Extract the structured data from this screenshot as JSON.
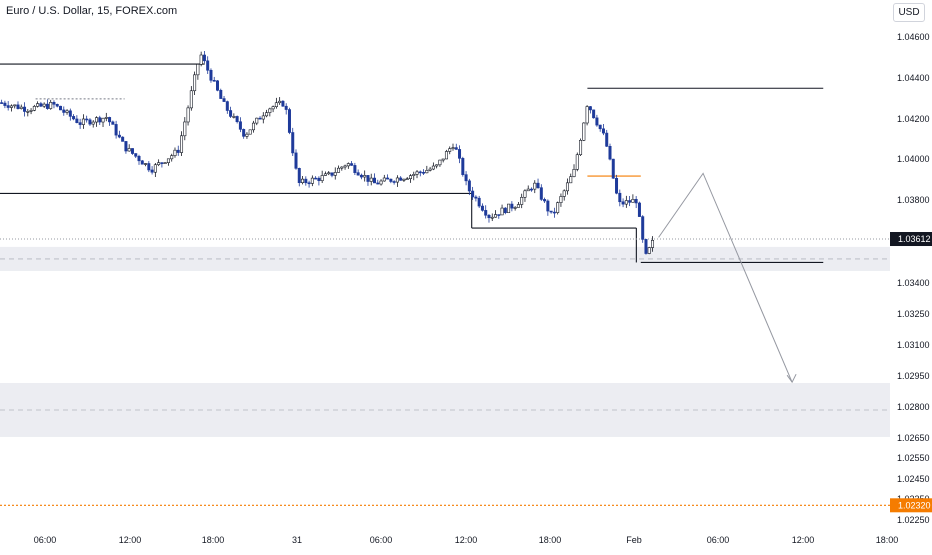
{
  "header": {
    "symbol_title": "Euro / U.S. Dollar, 15, FOREX.com",
    "currency": "USD"
  },
  "colors": {
    "up_candle": "#131722",
    "down_candle": "#1e3a9a",
    "level_line": "#131722",
    "orange_level": "#f57c00",
    "zone_fill": "#ecedf2",
    "projection": "#9598a1"
  },
  "chart_data": {
    "type": "candlestick",
    "title": "Euro / U.S. Dollar, 15, FOREX.com",
    "ylim": [
      1.0222,
      1.0476
    ],
    "y_ticks": [
      "1.04600",
      "1.04400",
      "1.04200",
      "1.04000",
      "1.03800",
      "1.03400",
      "1.03250",
      "1.03100",
      "1.02950",
      "1.02800",
      "1.02650",
      "1.02550",
      "1.02450",
      "1.02350",
      "1.02250"
    ],
    "x_ticks": [
      "06:00",
      "12:00",
      "18:00",
      "31",
      "06:00",
      "12:00",
      "18:00",
      "Feb",
      "06:00",
      "12:00",
      "18:00"
    ],
    "last_price": "1.03612",
    "orange_price": "1.02320",
    "price_path": [
      {
        "t": 0,
        "p": 1.0428
      },
      {
        "t": 0.03,
        "p": 1.0425
      },
      {
        "t": 0.06,
        "p": 1.0427
      },
      {
        "t": 0.09,
        "p": 1.0418
      },
      {
        "t": 0.12,
        "p": 1.0421
      },
      {
        "t": 0.14,
        "p": 1.0406
      },
      {
        "t": 0.17,
        "p": 1.0395
      },
      {
        "t": 0.2,
        "p": 1.0404
      },
      {
        "t": 0.225,
        "p": 1.0452
      },
      {
        "t": 0.25,
        "p": 1.0428
      },
      {
        "t": 0.275,
        "p": 1.0412
      },
      {
        "t": 0.3,
        "p": 1.0425
      },
      {
        "t": 0.32,
        "p": 1.0428
      },
      {
        "t": 0.335,
        "p": 1.0388
      },
      {
        "t": 0.37,
        "p": 1.0392
      },
      {
        "t": 0.39,
        "p": 1.0398
      },
      {
        "t": 0.42,
        "p": 1.0388
      },
      {
        "t": 0.46,
        "p": 1.0392
      },
      {
        "t": 0.49,
        "p": 1.0396
      },
      {
        "t": 0.51,
        "p": 1.0408
      },
      {
        "t": 0.525,
        "p": 1.0386
      },
      {
        "t": 0.55,
        "p": 1.0372
      },
      {
        "t": 0.58,
        "p": 1.0378
      },
      {
        "t": 0.6,
        "p": 1.0388
      },
      {
        "t": 0.62,
        "p": 1.0372
      },
      {
        "t": 0.645,
        "p": 1.0394
      },
      {
        "t": 0.66,
        "p": 1.0428
      },
      {
        "t": 0.68,
        "p": 1.041
      },
      {
        "t": 0.695,
        "p": 1.0378
      },
      {
        "t": 0.715,
        "p": 1.038
      },
      {
        "t": 0.725,
        "p": 1.0352
      },
      {
        "t": 0.735,
        "p": 1.0361
      }
    ],
    "levels": [
      {
        "price": 1.04468,
        "x_from": 0.0,
        "x_to": 0.23
      },
      {
        "price": 1.03832,
        "x_from": 0.0,
        "x_to": 0.53
      },
      {
        "price": 1.03665,
        "x_from": 0.53,
        "x_to": 0.715
      },
      {
        "price": 1.0435,
        "x_from": 0.66,
        "x_to": 0.925
      },
      {
        "price": 1.03499,
        "x_from": 0.72,
        "x_to": 0.925
      }
    ],
    "dotted_level": {
      "price": 1.04298,
      "x_from": 0.04,
      "x_to": 0.14
    },
    "orange_short_level": {
      "price": 1.03917,
      "x_from": 0.66,
      "x_to": 0.72
    },
    "zones": [
      {
        "from": 1.03458,
        "to": 1.03574
      },
      {
        "from": 1.02655,
        "to": 1.02916
      }
    ],
    "projection": [
      {
        "t": 0.74,
        "p": 1.0362
      },
      {
        "t": 0.79,
        "p": 1.0393
      },
      {
        "t": 0.89,
        "p": 1.0292
      }
    ]
  }
}
